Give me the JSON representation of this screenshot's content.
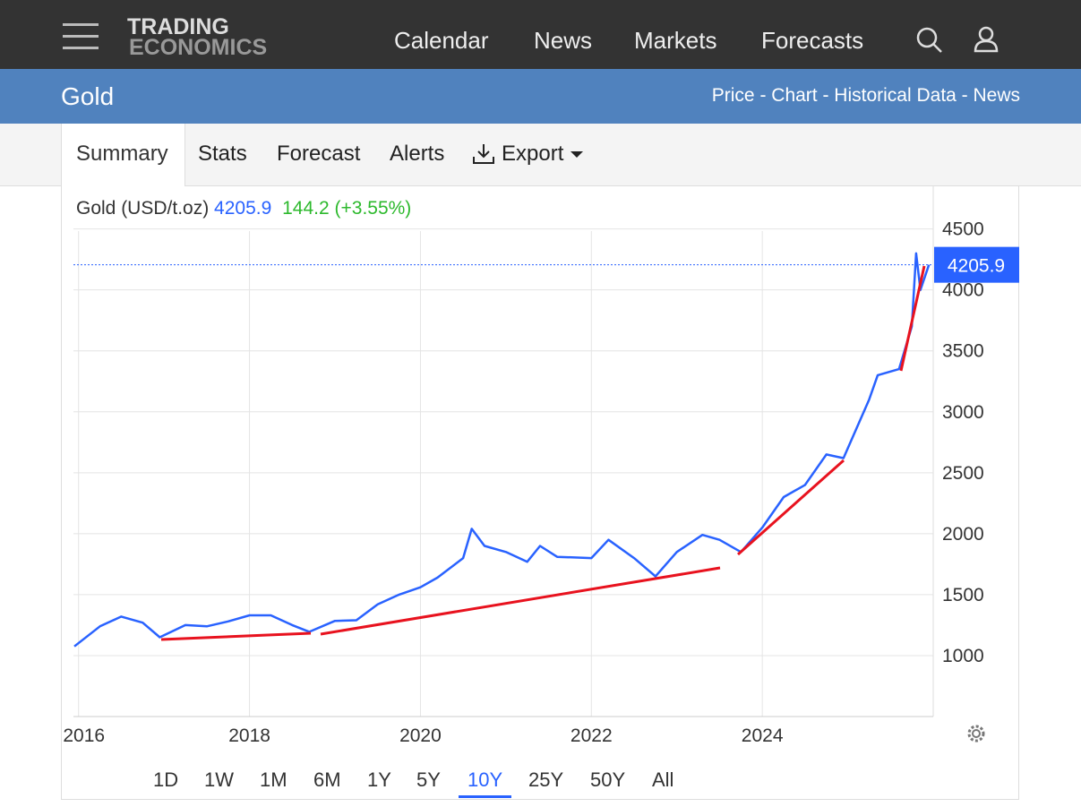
{
  "nav": {
    "logo_top": "TRADING",
    "logo_bottom": "ECONOMICS",
    "links": [
      "Calendar",
      "News",
      "Markets",
      "Forecasts"
    ]
  },
  "banner": {
    "title": "Gold",
    "links": "Price - Chart - Historical Data - News"
  },
  "tabs": {
    "items": [
      "Summary",
      "Stats",
      "Forecast",
      "Alerts",
      "Export"
    ],
    "active": 0
  },
  "quote": {
    "price": "4205.9",
    "change": "144.2 (+3.55%)"
  },
  "ranges": {
    "items": [
      "1D",
      "1W",
      "1M",
      "6M",
      "1Y",
      "5Y",
      "10Y",
      "25Y",
      "50Y",
      "All"
    ],
    "active": 6
  },
  "chart_data": {
    "type": "line",
    "title": "Gold (USD/t.oz)",
    "color": "#2962ff",
    "grid": true,
    "x": [
      2015.95,
      2016.25,
      2016.5,
      2016.75,
      2016.95,
      2017.25,
      2017.5,
      2017.75,
      2018.0,
      2018.25,
      2018.5,
      2018.7,
      2019.0,
      2019.25,
      2019.5,
      2019.75,
      2020.0,
      2020.2,
      2020.5,
      2020.6,
      2020.75,
      2021.0,
      2021.25,
      2021.4,
      2021.6,
      2022.0,
      2022.2,
      2022.5,
      2022.75,
      2023.0,
      2023.3,
      2023.5,
      2023.75,
      2024.0,
      2024.25,
      2024.5,
      2024.75,
      2024.95,
      2025.25,
      2025.35,
      2025.6,
      2025.75,
      2025.8,
      2025.85,
      2025.95
    ],
    "values": [
      1075,
      1240,
      1320,
      1270,
      1150,
      1250,
      1240,
      1280,
      1330,
      1330,
      1250,
      1195,
      1285,
      1290,
      1420,
      1500,
      1560,
      1640,
      1800,
      2040,
      1900,
      1850,
      1770,
      1900,
      1810,
      1800,
      1950,
      1800,
      1650,
      1850,
      1990,
      1950,
      1850,
      2050,
      2300,
      2400,
      2650,
      2620,
      3100,
      3300,
      3350,
      3700,
      4300,
      4000,
      4205.9
    ],
    "xlim": [
      2015.94,
      2026.0
    ],
    "xticks": [
      2016,
      2018,
      2020,
      2022,
      2024
    ],
    "ylim": [
      500,
      4850
    ],
    "yticks": [
      1000,
      1500,
      2000,
      2500,
      3000,
      3500,
      4000,
      4500
    ]
  }
}
